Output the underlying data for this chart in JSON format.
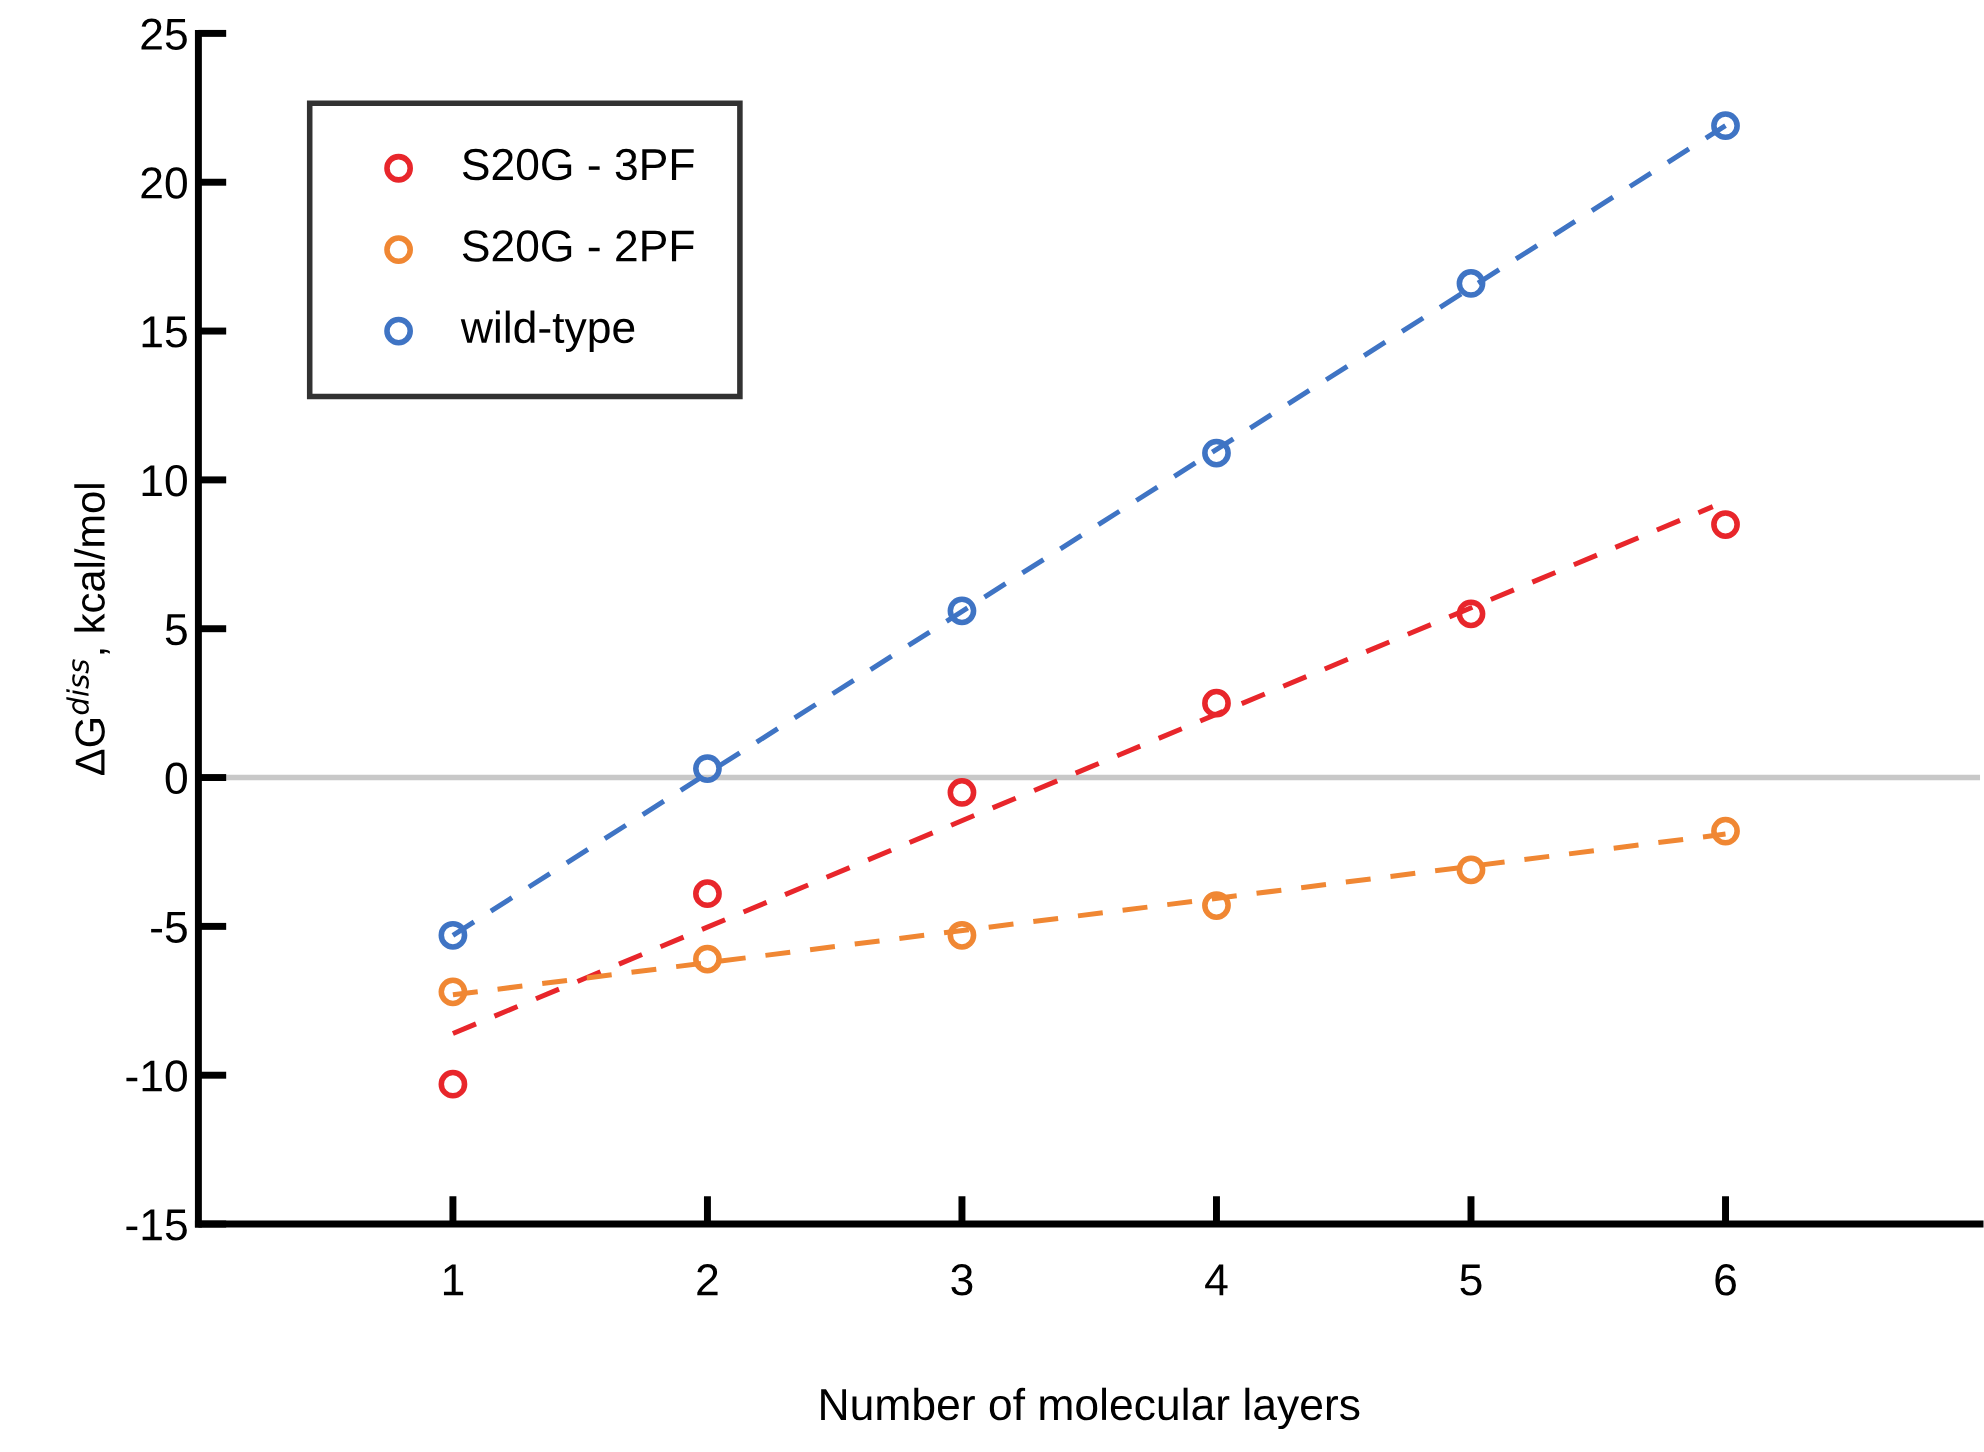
{
  "chart_data": {
    "type": "scatter",
    "xlabel": "Number of molecular layers",
    "ylabel": "ΔG$^{diss}$, kcal/mol",
    "xlim": [
      0,
      7
    ],
    "xticks": [
      1,
      2,
      3,
      4,
      5,
      6
    ],
    "ylim": [
      -15,
      25
    ],
    "yticks": [
      -15,
      -10,
      -5,
      0,
      5,
      10,
      15,
      20,
      25
    ],
    "x": [
      1,
      2,
      3,
      4,
      5,
      6
    ],
    "grid": false,
    "legend": "top left",
    "marker": "circle",
    "series": [
      {
        "name": "S20G - 3PF",
        "color": "#e8262b",
        "values": [
          -10.3,
          -3.9,
          -0.5,
          2.5,
          5.5,
          8.5
        ]
      },
      {
        "name": "S20G - 2PF",
        "color": "#f08733",
        "values": [
          -7.2,
          -6.1,
          -5.3,
          -4.3,
          -3.1,
          -1.8
        ]
      },
      {
        "name": "wild-type",
        "color": "#3f74c4",
        "values": [
          -5.3,
          0.3,
          5.6,
          10.9,
          16.6,
          21.9
        ]
      },
      {
        "type": "line",
        "line_style": "dashed",
        "marker": "none",
        "color": "#e8262b",
        "x": [
          1,
          5.95
        ],
        "values": [
          -8.6,
          9.1
        ]
      },
      {
        "type": "line",
        "line_style": "dashed",
        "marker": "none",
        "color": "#f08733",
        "x": [
          1,
          6
        ],
        "values": [
          -7.3,
          -1.9
        ]
      },
      {
        "type": "line",
        "line_style": "dashed",
        "marker": "none",
        "color": "#3f74c4",
        "x": [
          1,
          6
        ],
        "values": [
          -5.3,
          21.9
        ]
      }
    ],
    "ref_lines": [
      {
        "axis": "y",
        "value": 0,
        "color": "#c8c8c8",
        "line_style": "solid"
      }
    ]
  }
}
